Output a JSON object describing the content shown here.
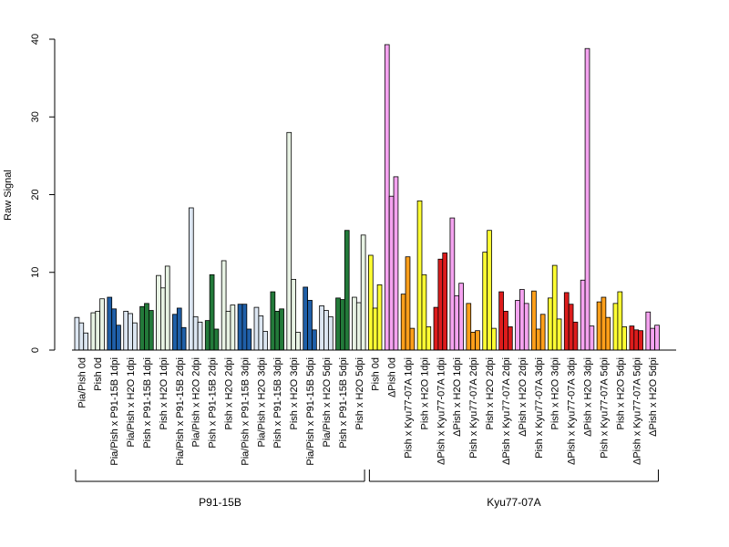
{
  "colors": {
    "pale_blue": "#dce6f2",
    "dark_blue": "#1f5fa8",
    "dark_green": "#237a3a",
    "pale_green": "#e8f3e4",
    "yellow": "#ffff33",
    "orange": "#ff9f1a",
    "red": "#dd1c1c",
    "pink": "#f5a3f0"
  },
  "chart_data": {
    "type": "bar",
    "ylabel": "Raw Signal",
    "ylim": [
      0,
      40
    ],
    "yticks": [
      0,
      10,
      20,
      30,
      40
    ],
    "grid": false,
    "groups": [
      {
        "label": "P91-15B",
        "categories": [
          {
            "label": "Pia/Pish 0d",
            "color": "pale_blue",
            "values": [
              4.2,
              3.5,
              2.2
            ]
          },
          {
            "label": "Pish 0d",
            "color": "pale_green",
            "values": [
              4.8,
              5.0,
              6.6
            ]
          },
          {
            "label": "Pia/Pish x P91-15B 1dpi",
            "color": "dark_blue",
            "values": [
              6.8,
              5.3,
              3.2
            ]
          },
          {
            "label": "Pia/Pish x H2O 1dpi",
            "color": "pale_blue",
            "values": [
              5.0,
              4.7,
              3.5
            ]
          },
          {
            "label": "Pish x P91-15B 1dpi",
            "color": "dark_green",
            "values": [
              5.6,
              6.0,
              5.1
            ]
          },
          {
            "label": "Pish x H2O 1dpi",
            "color": "pale_green",
            "values": [
              9.6,
              8.0,
              10.8
            ]
          },
          {
            "label": "Pia/Pish x P91-15B 2dpi",
            "color": "dark_blue",
            "values": [
              4.6,
              5.4,
              2.9
            ]
          },
          {
            "label": "Pia/Pish x H2O 2dpi",
            "color": "pale_blue",
            "values": [
              18.3,
              4.3,
              3.6
            ]
          },
          {
            "label": "Pish x P91-15B 2dpi",
            "color": "dark_green",
            "values": [
              3.8,
              9.7,
              2.7
            ]
          },
          {
            "label": "Pish x H2O 2dpi",
            "color": "pale_green",
            "values": [
              11.5,
              5.0,
              5.8
            ]
          },
          {
            "label": "Pia/Pish x P91-15B 3dpi",
            "color": "dark_blue",
            "values": [
              5.9,
              5.9,
              2.7
            ]
          },
          {
            "label": "Pia/Pish x H2O 3dpi",
            "color": "pale_blue",
            "values": [
              5.5,
              4.4,
              2.4
            ]
          },
          {
            "label": "Pish x P91-15B 3dpi",
            "color": "dark_green",
            "values": [
              7.5,
              5.0,
              5.3
            ]
          },
          {
            "label": "Pish x H2O 3dpi",
            "color": "pale_green",
            "values": [
              28.0,
              9.1,
              2.3
            ]
          },
          {
            "label": "Pia/Pish x P91-15B 5dpi",
            "color": "dark_blue",
            "values": [
              8.1,
              6.4,
              2.6
            ]
          },
          {
            "label": "Pia/Pish x H2O 5dpi",
            "color": "pale_blue",
            "values": [
              5.7,
              5.1,
              4.3
            ]
          },
          {
            "label": "Pish x P91-15B 5dpi",
            "color": "dark_green",
            "values": [
              6.7,
              6.5,
              15.4
            ]
          },
          {
            "label": "Pish x H2O 5dpi",
            "color": "pale_green",
            "values": [
              6.8,
              6.1,
              14.8
            ]
          }
        ]
      },
      {
        "label": "Kyu77-07A",
        "categories": [
          {
            "label": "Pish 0d",
            "color": "yellow",
            "values": [
              12.2,
              5.4,
              8.4
            ]
          },
          {
            "label": "ΔPish 0d",
            "color": "pink",
            "values": [
              39.3,
              19.8,
              22.3
            ]
          },
          {
            "label": "Pish x Kyu77-07A 1dpi",
            "color": "orange",
            "values": [
              7.2,
              12.0,
              2.8
            ]
          },
          {
            "label": "Pish x H2O 1dpi",
            "color": "yellow",
            "values": [
              19.2,
              9.7,
              3.0
            ]
          },
          {
            "label": "ΔPish x Kyu77-07A 1dpi",
            "color": "red",
            "values": [
              5.5,
              11.7,
              12.5
            ]
          },
          {
            "label": "ΔPish x H2O 1dpi",
            "color": "pink",
            "values": [
              17.0,
              7.0,
              8.6
            ]
          },
          {
            "label": "Pish x Kyu77-07A 2dpi",
            "color": "orange",
            "values": [
              6.0,
              2.3,
              2.5
            ]
          },
          {
            "label": "Pish x H2O 2dpi",
            "color": "yellow",
            "values": [
              12.6,
              15.4,
              2.8
            ]
          },
          {
            "label": "ΔPish x Kyu77-07A 2dpi",
            "color": "red",
            "values": [
              7.5,
              5.0,
              3.0
            ]
          },
          {
            "label": "ΔPish x H2O 2dpi",
            "color": "pink",
            "values": [
              6.4,
              7.8,
              6.0
            ]
          },
          {
            "label": "Pish x Kyu77-07A 3dpi",
            "color": "orange",
            "values": [
              7.6,
              2.7,
              4.6
            ]
          },
          {
            "label": "Pish x H2O 3dpi",
            "color": "yellow",
            "values": [
              6.7,
              10.9,
              4.0
            ]
          },
          {
            "label": "ΔPish x Kyu77-07A 3dpi",
            "color": "red",
            "values": [
              7.4,
              5.9,
              3.6
            ]
          },
          {
            "label": "ΔPish x H2O 3dpi",
            "color": "pink",
            "values": [
              9.0,
              38.8,
              3.1
            ]
          },
          {
            "label": "Pish x Kyu77-07A 5dpi",
            "color": "orange",
            "values": [
              6.2,
              6.8,
              4.2
            ]
          },
          {
            "label": "Pish x H2O 5dpi",
            "color": "yellow",
            "values": [
              6.0,
              7.5,
              3.0
            ]
          },
          {
            "label": "ΔPish x Kyu77-07A 5dpi",
            "color": "red",
            "values": [
              3.1,
              2.6,
              2.5
            ]
          },
          {
            "label": "ΔPish x H2O 5dpi",
            "color": "pink",
            "values": [
              4.9,
              2.8,
              3.2
            ]
          }
        ]
      }
    ]
  }
}
